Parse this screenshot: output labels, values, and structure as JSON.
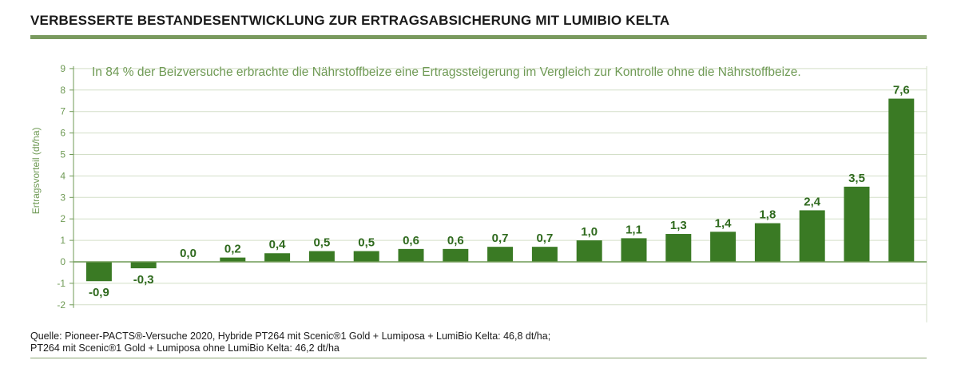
{
  "title": "VERBESSERTE BESTANDESENTWICKLUNG ZUR ERTRAGSABSICHERUNG MIT LUMIBIO KELTA",
  "source": {
    "line1": "Quelle: Pioneer-PACTS®-Versuche 2020, Hybride PT264 mit Scenic®1 Gold + Lumiposa + LumiBio Kelta: 46,8 dt/ha;",
    "line2": "PT264 mit Scenic®1 Gold + Lumiposa ohne LumiBio Kelta: 46,2 dt/ha"
  },
  "colors": {
    "bar": "#3a7a24",
    "axis_text": "#6f9a55",
    "grid": "#d3dfc8",
    "baseline": "#6f9a55",
    "label": "#2f6a1e"
  },
  "chart_data": {
    "type": "bar",
    "annotation": "In 84 % der Beizversuche erbrachte die Nährstoffbeize eine Ertragssteigerung im Vergleich zur Kontrolle ohne die Nährstoffbeize.",
    "ylabel": "Ertragsvorteil (dt/ha)",
    "xlabel": "",
    "ylim": [
      -2,
      9
    ],
    "yticks": [
      9,
      8,
      7,
      6,
      5,
      4,
      3,
      2,
      1,
      0,
      -1,
      -2
    ],
    "grid": true,
    "values": [
      -0.9,
      -0.3,
      0.0,
      0.2,
      0.4,
      0.5,
      0.5,
      0.6,
      0.6,
      0.7,
      0.7,
      1.0,
      1.1,
      1.3,
      1.4,
      1.8,
      2.4,
      3.5,
      7.6
    ],
    "labels": [
      "-0,9",
      "-0,3",
      "0,0",
      "0,2",
      "0,4",
      "0,5",
      "0,5",
      "0,6",
      "0,6",
      "0,7",
      "0,7",
      "1,0",
      "1,1",
      "1,3",
      "1,4",
      "1,8",
      "2,4",
      "3,5",
      "7,6"
    ]
  }
}
